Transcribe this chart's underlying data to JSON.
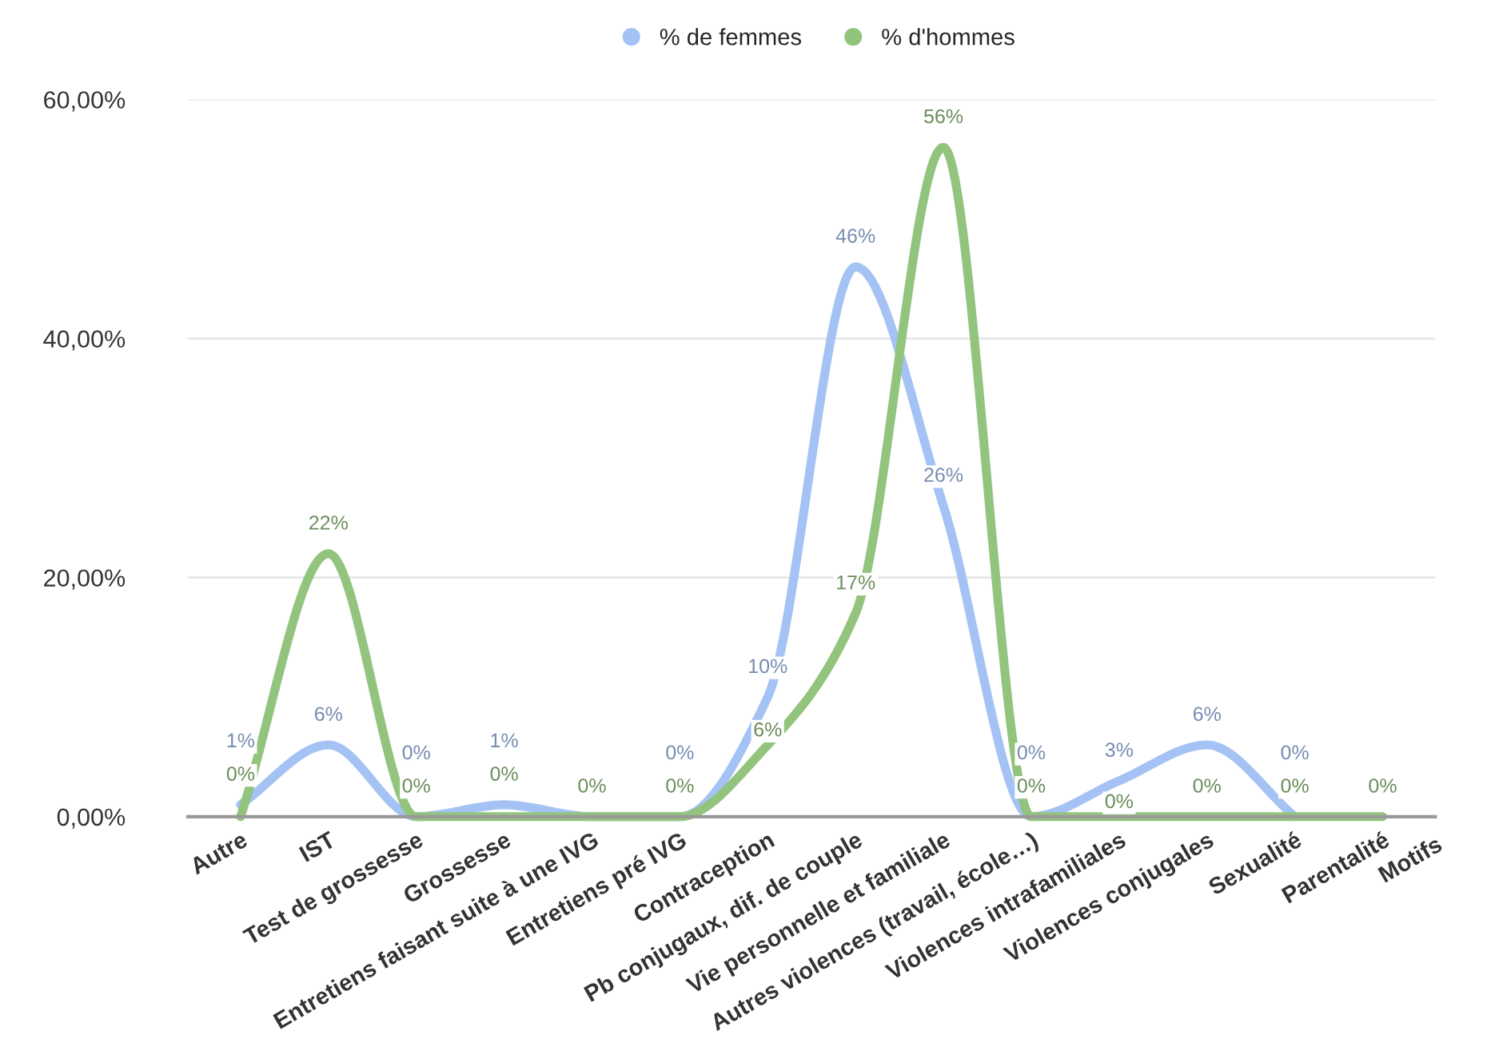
{
  "chart_data": {
    "type": "line",
    "xlabel": "Motifs",
    "categories": [
      "Autre",
      "IST",
      "Test de grossesse",
      "Grossesse",
      "Entretiens faisant suite à une IVG",
      "Entretiens pré IVG",
      "Contraception",
      "Pb conjugaux, dif. de couple",
      "Vie personnelle et familiale",
      "Autres violences (travail, école…)",
      "Violences intrafamiliales",
      "Violences conjugales",
      "Sexualité",
      "Parentalité"
    ],
    "series": [
      {
        "name": "% de femmes",
        "color": "#a4c2f4",
        "values": [
          1,
          6,
          0,
          1,
          0,
          0,
          10,
          46,
          26,
          0,
          3,
          6,
          0,
          null
        ],
        "value_labels": [
          "1%",
          "6%",
          "0%",
          "1%",
          null,
          "0%",
          "10%",
          "46%",
          "26%",
          "0%",
          "3%",
          "6%",
          "0%",
          null
        ]
      },
      {
        "name": "% d'hommes",
        "color": "#93c47d",
        "values": [
          0,
          22,
          0,
          0,
          0,
          0,
          6,
          17,
          56,
          0,
          0,
          0,
          0,
          0
        ],
        "value_labels": [
          "0%",
          "22%",
          "0%",
          "0%",
          "0%",
          "0%",
          "6%",
          "17%",
          "56%",
          "0%",
          "0%",
          "0%",
          "0%",
          "0%"
        ]
      }
    ],
    "ylim": [
      0,
      60
    ],
    "yticks": [
      {
        "value": 0,
        "label": "0,00%"
      },
      {
        "value": 20,
        "label": "20,00%"
      },
      {
        "value": 40,
        "label": "40,00%"
      },
      {
        "value": 60,
        "label": "60,00%"
      }
    ],
    "grid": "y",
    "legend": "top",
    "marker": "none",
    "line_style": "solid"
  }
}
